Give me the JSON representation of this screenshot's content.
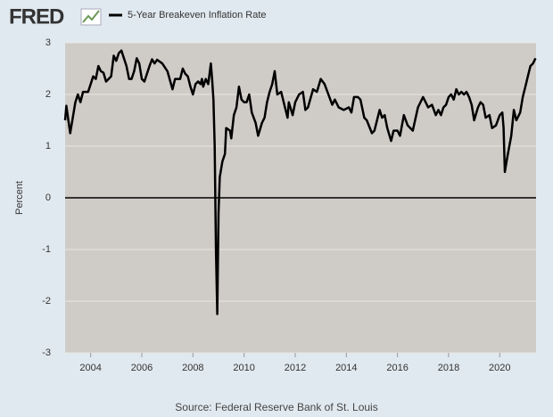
{
  "logo": "FRED",
  "chart_data": {
    "type": "line",
    "series": [
      {
        "name": "5-Year Breakeven Inflation Rate",
        "color": "#000000",
        "x": [
          2003.0,
          2003.05,
          2003.2,
          2003.4,
          2003.5,
          2003.6,
          2003.7,
          2003.9,
          2004.1,
          2004.2,
          2004.3,
          2004.4,
          2004.5,
          2004.6,
          2004.8,
          2004.9,
          2005.0,
          2005.1,
          2005.2,
          2005.4,
          2005.5,
          2005.6,
          2005.7,
          2005.8,
          2005.9,
          2006.0,
          2006.1,
          2006.3,
          2006.4,
          2006.5,
          2006.6,
          2006.8,
          2007.0,
          2007.2,
          2007.3,
          2007.5,
          2007.6,
          2007.7,
          2007.8,
          2007.9,
          2008.0,
          2008.1,
          2008.2,
          2008.3,
          2008.35,
          2008.4,
          2008.5,
          2008.6,
          2008.7,
          2008.75,
          2008.8,
          2008.85,
          2008.9,
          2008.95,
          2009.0,
          2009.05,
          2009.15,
          2009.25,
          2009.3,
          2009.45,
          2009.5,
          2009.6,
          2009.7,
          2009.8,
          2009.9,
          2010.0,
          2010.1,
          2010.2,
          2010.3,
          2010.45,
          2010.55,
          2010.7,
          2010.8,
          2010.9,
          2011.0,
          2011.1,
          2011.2,
          2011.3,
          2011.45,
          2011.6,
          2011.7,
          2011.75,
          2011.9,
          2012.0,
          2012.15,
          2012.3,
          2012.4,
          2012.5,
          2012.7,
          2012.85,
          2013.0,
          2013.15,
          2013.3,
          2013.45,
          2013.55,
          2013.7,
          2013.9,
          2014.1,
          2014.2,
          2014.3,
          2014.45,
          2014.55,
          2014.7,
          2014.8,
          2015.0,
          2015.1,
          2015.2,
          2015.3,
          2015.4,
          2015.5,
          2015.6,
          2015.75,
          2015.85,
          2016.0,
          2016.1,
          2016.25,
          2016.4,
          2016.6,
          2016.8,
          2017.0,
          2017.1,
          2017.2,
          2017.35,
          2017.5,
          2017.6,
          2017.7,
          2017.8,
          2017.9,
          2018.0,
          2018.1,
          2018.2,
          2018.3,
          2018.4,
          2018.5,
          2018.6,
          2018.7,
          2018.8,
          2018.9,
          2019.0,
          2019.15,
          2019.25,
          2019.35,
          2019.45,
          2019.6,
          2019.7,
          2019.85,
          2020.0,
          2020.1,
          2020.15,
          2020.2,
          2020.3,
          2020.45,
          2020.55,
          2020.65,
          2020.8,
          2020.9,
          2021.0,
          2021.1,
          2021.2,
          2021.3,
          2021.4
        ],
        "values": [
          1.5,
          1.78,
          1.25,
          1.85,
          2.0,
          1.85,
          2.05,
          2.05,
          2.35,
          2.3,
          2.55,
          2.45,
          2.42,
          2.25,
          2.35,
          2.75,
          2.65,
          2.8,
          2.85,
          2.55,
          2.3,
          2.3,
          2.45,
          2.7,
          2.6,
          2.3,
          2.25,
          2.55,
          2.68,
          2.6,
          2.67,
          2.6,
          2.45,
          2.1,
          2.3,
          2.3,
          2.5,
          2.4,
          2.35,
          2.15,
          2.0,
          2.2,
          2.25,
          2.2,
          2.3,
          2.15,
          2.3,
          2.2,
          2.6,
          2.3,
          1.9,
          1.0,
          -1.0,
          -2.25,
          -0.3,
          0.4,
          0.7,
          0.85,
          1.35,
          1.3,
          1.15,
          1.6,
          1.75,
          2.15,
          1.9,
          1.85,
          1.85,
          2.0,
          1.65,
          1.45,
          1.2,
          1.45,
          1.55,
          1.85,
          2.05,
          2.2,
          2.45,
          2.0,
          2.05,
          1.75,
          1.55,
          1.85,
          1.6,
          1.85,
          2.0,
          2.05,
          1.7,
          1.75,
          2.1,
          2.05,
          2.3,
          2.2,
          2.0,
          1.8,
          1.9,
          1.75,
          1.7,
          1.75,
          1.65,
          1.95,
          1.95,
          1.9,
          1.55,
          1.5,
          1.25,
          1.3,
          1.5,
          1.7,
          1.55,
          1.6,
          1.35,
          1.1,
          1.3,
          1.3,
          1.2,
          1.6,
          1.4,
          1.3,
          1.75,
          1.95,
          1.85,
          1.75,
          1.8,
          1.6,
          1.7,
          1.6,
          1.75,
          1.8,
          1.95,
          2.0,
          1.9,
          2.1,
          2.0,
          2.05,
          2.0,
          2.05,
          1.95,
          1.8,
          1.5,
          1.75,
          1.85,
          1.8,
          1.55,
          1.6,
          1.35,
          1.4,
          1.6,
          1.65,
          1.35,
          0.5,
          0.8,
          1.2,
          1.7,
          1.5,
          1.65,
          1.95,
          2.15,
          2.35,
          2.55,
          2.6,
          2.7
        ]
      }
    ],
    "y_label": "Percent",
    "source": "Source: Federal Reserve Bank of St. Louis",
    "xlim": [
      2003.0,
      2021.42
    ],
    "xticks": [
      2004,
      2006,
      2008,
      2010,
      2012,
      2014,
      2016,
      2018,
      2020
    ],
    "ylim": [
      -3,
      3
    ],
    "yticks": [
      -3,
      -2,
      -1,
      0,
      1,
      2,
      3
    ],
    "zero_line": 0,
    "grid": true,
    "plot_background": "#cfccc8"
  }
}
